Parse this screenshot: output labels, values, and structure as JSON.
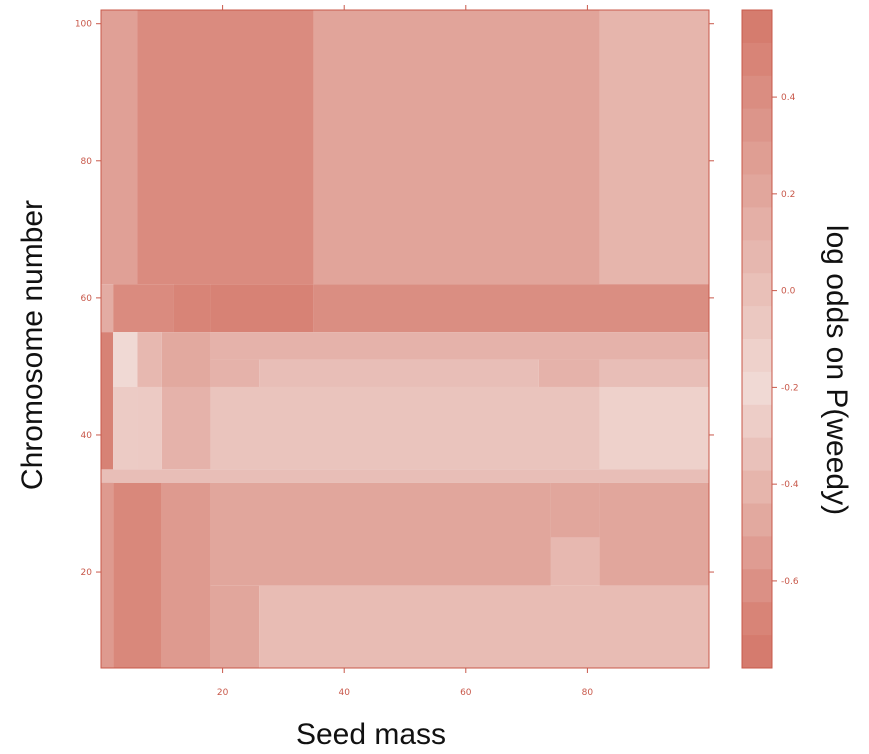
{
  "chart_data": {
    "type": "heatmap",
    "title": "",
    "xlabel": "Seed mass",
    "ylabel": "Chromosome number",
    "colorbar_label": "log odds on P(weedy)",
    "xlim": [
      0,
      100
    ],
    "ylim": [
      6,
      102
    ],
    "x_ticks": [
      20,
      40,
      60,
      80
    ],
    "y_ticks": [
      20,
      40,
      60,
      80,
      100
    ],
    "colorbar_ticks": [
      0.4,
      0.2,
      0.0,
      -0.2,
      -0.4,
      -0.6
    ],
    "colorbar_range": [
      -0.78,
      0.58
    ],
    "colorscale": {
      "low": "#f0d9d4",
      "high": "#d4786a"
    },
    "grid": false,
    "cells": [
      {
        "x0": 0,
        "x1": 6,
        "y0": 62,
        "y1": 102,
        "value": 0.25
      },
      {
        "x0": 6,
        "x1": 35,
        "y0": 62,
        "y1": 102,
        "value": 0.42
      },
      {
        "x0": 35,
        "x1": 82,
        "y0": 62,
        "y1": 102,
        "value": 0.22
      },
      {
        "x0": 82,
        "x1": 100,
        "y0": 62,
        "y1": 102,
        "value": 0.08
      },
      {
        "x0": 0,
        "x1": 2,
        "y0": 55,
        "y1": 62,
        "value": 0.15
      },
      {
        "x0": 2,
        "x1": 12,
        "y0": 55,
        "y1": 62,
        "value": 0.42
      },
      {
        "x0": 12,
        "x1": 18,
        "y0": 55,
        "y1": 62,
        "value": 0.48
      },
      {
        "x0": 18,
        "x1": 35,
        "y0": 55,
        "y1": 62,
        "value": 0.5
      },
      {
        "x0": 35,
        "x1": 100,
        "y0": 55,
        "y1": 62,
        "value": 0.4
      },
      {
        "x0": 0,
        "x1": 2,
        "y0": 33,
        "y1": 55,
        "value": 0.5
      },
      {
        "x0": 2,
        "x1": 6,
        "y0": 47,
        "y1": 55,
        "value": -0.22
      },
      {
        "x0": 6,
        "x1": 10,
        "y0": 47,
        "y1": 55,
        "value": 0.05
      },
      {
        "x0": 10,
        "x1": 18,
        "y0": 47,
        "y1": 55,
        "value": 0.18
      },
      {
        "x0": 18,
        "x1": 100,
        "y0": 51,
        "y1": 55,
        "value": 0.1
      },
      {
        "x0": 18,
        "x1": 26,
        "y0": 47,
        "y1": 51,
        "value": 0.1
      },
      {
        "x0": 26,
        "x1": 72,
        "y0": 47,
        "y1": 51,
        "value": 0.0
      },
      {
        "x0": 72,
        "x1": 82,
        "y0": 47,
        "y1": 51,
        "value": 0.1
      },
      {
        "x0": 82,
        "x1": 100,
        "y0": 47,
        "y1": 51,
        "value": 0.0
      },
      {
        "x0": 2,
        "x1": 6,
        "y0": 35,
        "y1": 47,
        "value": -0.3
      },
      {
        "x0": 6,
        "x1": 10,
        "y0": 35,
        "y1": 47,
        "value": -0.1
      },
      {
        "x0": 10,
        "x1": 18,
        "y0": 35,
        "y1": 47,
        "value": 0.1
      },
      {
        "x0": 18,
        "x1": 82,
        "y0": 35,
        "y1": 47,
        "value": -0.05
      },
      {
        "x0": 82,
        "x1": 100,
        "y0": 35,
        "y1": 47,
        "value": -0.15
      },
      {
        "x0": 0,
        "x1": 100,
        "y0": 33,
        "y1": 35,
        "value": 0.0
      },
      {
        "x0": 0,
        "x1": 2,
        "y0": 6,
        "y1": 33,
        "value": 0.3
      },
      {
        "x0": 2,
        "x1": 10,
        "y0": 6,
        "y1": 33,
        "value": 0.45
      },
      {
        "x0": 10,
        "x1": 18,
        "y0": 6,
        "y1": 33,
        "value": 0.3
      },
      {
        "x0": 18,
        "x1": 74,
        "y0": 18,
        "y1": 33,
        "value": 0.2
      },
      {
        "x0": 74,
        "x1": 82,
        "y0": 25,
        "y1": 33,
        "value": 0.2
      },
      {
        "x0": 74,
        "x1": 82,
        "y0": 18,
        "y1": 25,
        "value": 0.05
      },
      {
        "x0": 82,
        "x1": 100,
        "y0": 18,
        "y1": 33,
        "value": 0.2
      },
      {
        "x0": 18,
        "x1": 26,
        "y0": 6,
        "y1": 18,
        "value": 0.2
      },
      {
        "x0": 26,
        "x1": 100,
        "y0": 6,
        "y1": 18,
        "value": 0.02
      }
    ],
    "colorbar_bands": [
      0.55,
      0.48,
      0.41,
      0.34,
      0.27,
      0.2,
      0.13,
      0.06,
      -0.01,
      -0.08,
      -0.15,
      -0.22,
      -0.29,
      -0.36,
      -0.43,
      -0.5,
      -0.57,
      -0.64,
      -0.71,
      -0.76
    ]
  }
}
